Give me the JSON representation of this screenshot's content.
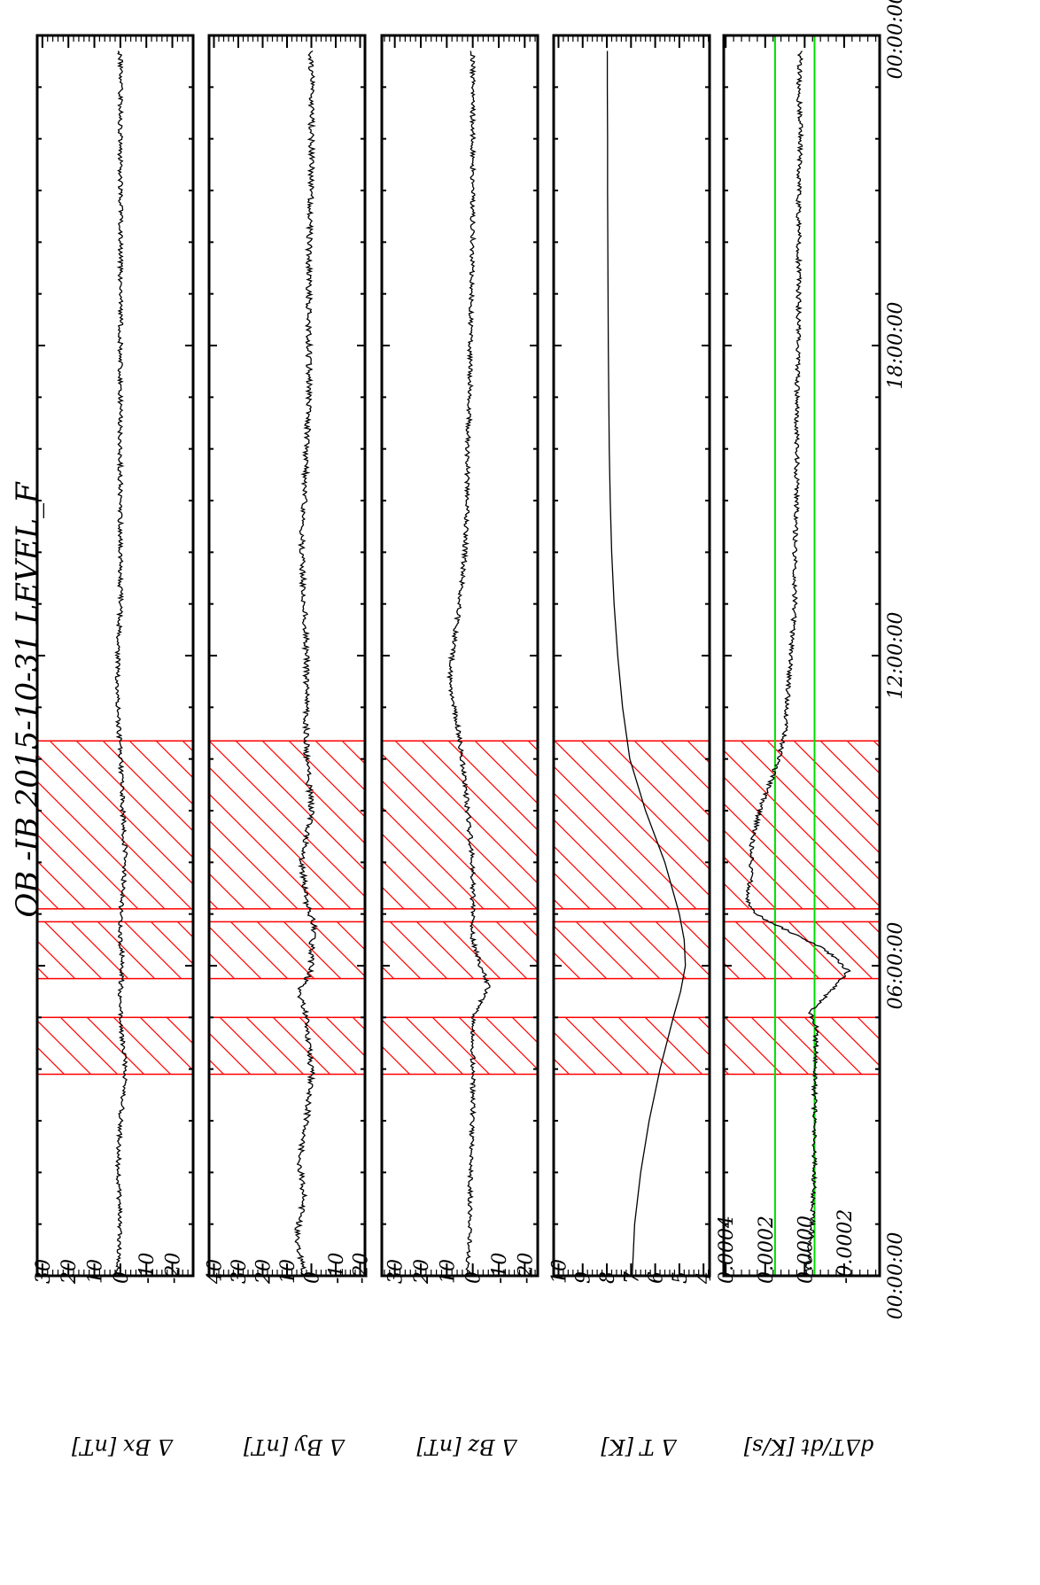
{
  "chart_data": {
    "type": "line",
    "title": "OB -IB  2015-10-31 LEVEL_F",
    "x_axis": {
      "start": "00:00:00",
      "end": "24:00:00",
      "ticks": [
        "00:00:00",
        "06:00:00",
        "12:00:00",
        "18:00:00",
        "00:00:00"
      ],
      "tick_hours": [
        0,
        6,
        12,
        18,
        24
      ]
    },
    "colors": {
      "line": "#000000",
      "hatch": "#ff0000",
      "threshold": "#00dd00"
    },
    "hatched_intervals_hours": [
      [
        3.9,
        5.0
      ],
      [
        5.75,
        6.85
      ],
      [
        7.1,
        10.35
      ]
    ],
    "panels": [
      {
        "ylabel": "Δ Bx [nT]",
        "ylim": [
          -28,
          32
        ],
        "yticks": [
          30,
          20,
          10,
          0,
          -10,
          -20
        ],
        "ytick_labels": [
          "30",
          "20",
          "10",
          "0",
          "-10",
          "-20"
        ],
        "series": [
          {
            "x": [
              0,
              1,
              2,
              3,
              3.9,
              4.5,
              5,
              5.5,
              6,
              6.5,
              7,
              7.5,
              8,
              9,
              10,
              11,
              12,
              13,
              14,
              15,
              16,
              17,
              18,
              19,
              20,
              21,
              22,
              23,
              23.7
            ],
            "y": [
              1,
              0,
              1,
              0,
              -2,
              -1,
              0,
              0,
              -1,
              0,
              0,
              -1,
              -2,
              -1,
              0,
              1,
              1,
              0,
              0,
              0,
              0,
              0,
              0,
              0,
              0,
              0,
              0,
              0,
              0
            ],
            "noise": 0.9
          }
        ]
      },
      {
        "ylabel": "Δ By [nT]",
        "ylim": [
          -22,
          42
        ],
        "yticks": [
          40,
          30,
          20,
          10,
          0,
          -10,
          -20
        ],
        "ytick_labels": [
          "40",
          "30",
          "20",
          "10",
          "0",
          "-10",
          "-20"
        ],
        "series": [
          {
            "x": [
              0,
              0.8,
              1.5,
              2.2,
              3,
              3.9,
              4.5,
              5,
              5.5,
              5.9,
              6.3,
              6.8,
              7.2,
              8,
              9,
              10,
              11,
              12,
              13,
              14,
              15,
              16,
              17,
              18,
              19,
              20,
              21,
              22,
              23,
              23.7
            ],
            "y": [
              3,
              6,
              3,
              5,
              2,
              0,
              1,
              2,
              5,
              0,
              0,
              -1,
              2,
              4,
              0,
              2,
              2,
              2,
              3,
              4,
              3,
              2,
              1,
              1,
              1,
              1,
              0,
              0,
              0,
              0
            ],
            "noise": 1.2
          }
        ]
      },
      {
        "ylabel": "Δ Bz [nT]",
        "ylim": [
          -25,
          35
        ],
        "yticks": [
          30,
          20,
          10,
          0,
          -10,
          -20
        ],
        "ytick_labels": [
          "30",
          "20",
          "10",
          "0",
          "-10",
          "-20"
        ],
        "series": [
          {
            "x": [
              0,
              1,
              2,
              3,
              3.9,
              4.5,
              5,
              5.6,
              6,
              6.5,
              7,
              8,
              9,
              10,
              11,
              11.5,
              12,
              13,
              14,
              15,
              16,
              17,
              18,
              20,
              22,
              23.7
            ],
            "y": [
              2,
              1,
              1,
              0,
              0,
              0,
              0,
              -6,
              -3,
              0,
              0,
              0,
              2,
              4,
              7,
              9,
              8,
              5,
              3,
              2,
              2,
              1,
              1,
              0,
              0,
              0
            ],
            "noise": 0.9
          }
        ]
      },
      {
        "ylabel": "Δ T [K]",
        "ylim": [
          3.75,
          10.2
        ],
        "yticks": [
          10,
          9,
          8,
          7,
          6,
          5,
          4
        ],
        "ytick_labels": [
          "10",
          "9",
          "8",
          "7",
          "6",
          "5",
          "4"
        ],
        "minor_step": 0.2,
        "series": [
          {
            "x": [
              0,
              1,
              2,
              3,
              4,
              5,
              5.5,
              6,
              6.5,
              7,
              8,
              9,
              10,
              11,
              12,
              13,
              14,
              15,
              16,
              17,
              18,
              19,
              20,
              21,
              22,
              23,
              23.7
            ],
            "y": [
              6.95,
              6.85,
              6.6,
              6.25,
              5.8,
              5.25,
              4.95,
              4.75,
              4.8,
              5.0,
              5.6,
              6.4,
              7.05,
              7.35,
              7.55,
              7.7,
              7.8,
              7.86,
              7.9,
              7.92,
              7.94,
              7.95,
              7.96,
              7.97,
              7.97,
              7.98,
              7.98
            ],
            "noise": 0
          }
        ]
      },
      {
        "ylabel": "dΔT/dt [K/s]",
        "ylim": [
          -0.00038,
          0.00041
        ],
        "yticks": [
          0.0004,
          0.0002,
          0.0,
          -0.0002
        ],
        "ytick_labels": [
          "0.0004",
          "0.0002",
          "0.0000",
          "-0.0002"
        ],
        "thresholds": [
          0.00015,
          -5e-05
        ],
        "series": [
          {
            "x": [
              0,
              1,
              2,
              3,
              4,
              4.8,
              5.1,
              5.5,
              5.9,
              6.3,
              6.7,
              7,
              7.3,
              7.8,
              8.3,
              9,
              9.5,
              10,
              10.5,
              11,
              12,
              13,
              14,
              15,
              16,
              17,
              18,
              19,
              20,
              21,
              22,
              23,
              23.7
            ],
            "y": [
              -1e-05,
              -4e-05,
              -5e-05,
              -5e-05,
              -5e-05,
              -6e-05,
              -3e-05,
              -0.00013,
              -0.00022,
              -0.00011,
              0.0001,
              0.00025,
              0.00029,
              0.00027,
              0.00027,
              0.00023,
              0.00018,
              0.00013,
              0.0001,
              9e-05,
              7e-05,
              5e-05,
              5e-05,
              4e-05,
              4e-05,
              4e-05,
              3e-05,
              3e-05,
              3e-05,
              3e-05,
              2e-05,
              3e-05,
              2e-05
            ],
            "noise": 1.2e-05
          }
        ]
      }
    ]
  }
}
